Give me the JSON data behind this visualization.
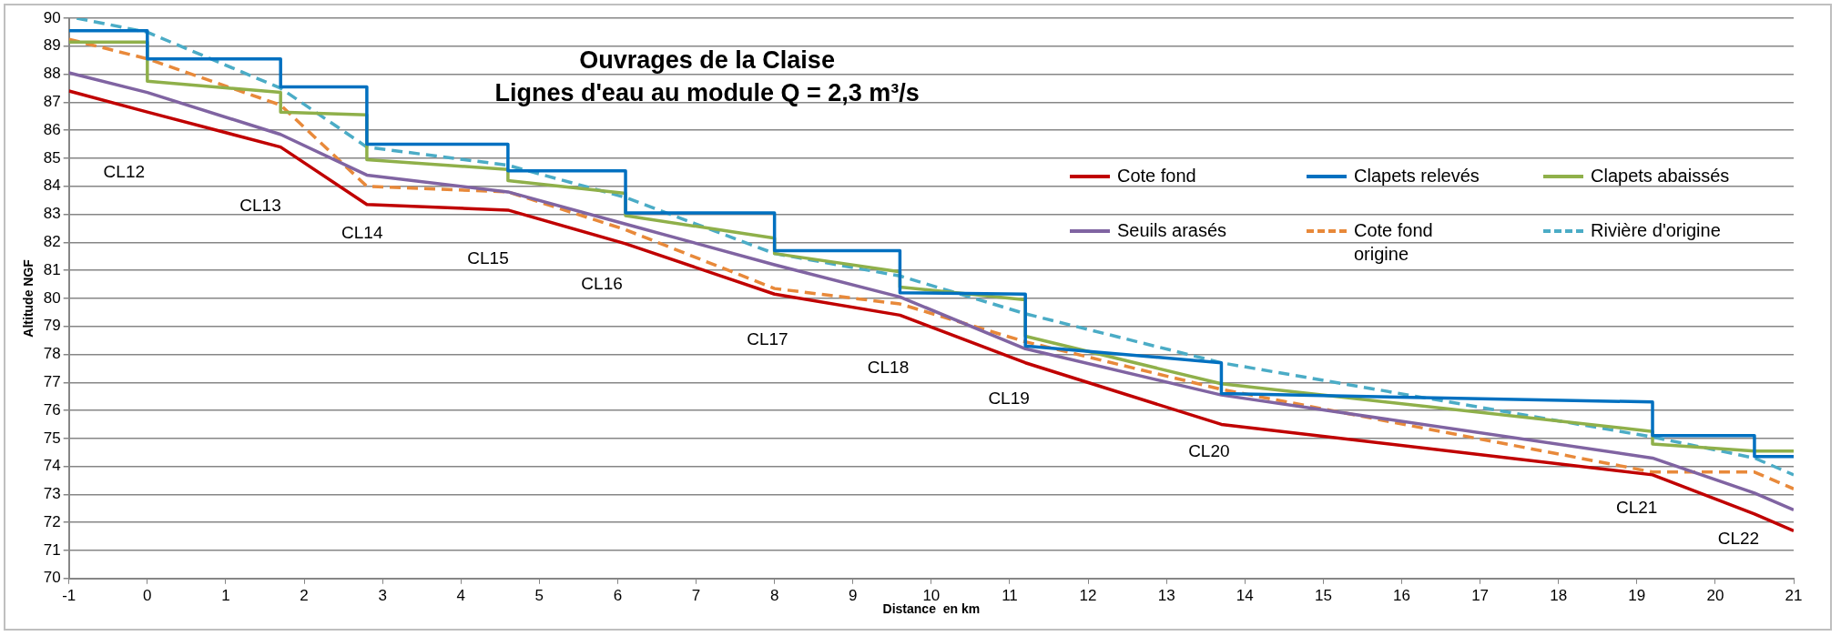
{
  "chart_data": {
    "type": "line",
    "title": "Ouvrages de la Claise",
    "subtitle": "Lignes d'eau au module Q = 2,3 m³/s",
    "xlabel": "Distance  en km",
    "ylabel": "Altitude NGF",
    "xlim": [
      -1,
      21
    ],
    "xticks": [
      -1,
      0,
      1,
      2,
      3,
      4,
      5,
      6,
      7,
      8,
      9,
      10,
      11,
      12,
      13,
      14,
      15,
      16,
      17,
      18,
      19,
      20,
      21
    ],
    "ylim": [
      70,
      90
    ],
    "yticks": [
      70,
      71,
      72,
      73,
      74,
      75,
      76,
      77,
      78,
      79,
      80,
      81,
      82,
      83,
      84,
      85,
      86,
      87,
      88,
      89,
      90
    ],
    "grid": "y",
    "legend": "right",
    "marker": "none",
    "series": [
      {
        "name": "Cote fond",
        "color": "#c00000",
        "line_style": "solid",
        "x": [
          -1,
          0,
          1.7,
          2.8,
          4.6,
          6.1,
          8,
          9.6,
          11.2,
          13.7,
          19.2,
          20.5,
          21
        ],
        "values": [
          87.4,
          86.65,
          85.4,
          83.35,
          83.15,
          81.95,
          80.15,
          79.4,
          77.7,
          75.5,
          73.7,
          72.3,
          71.7
        ]
      },
      {
        "name": "Clapets relevés",
        "color": "#0070c0",
        "line_style": "solid",
        "x": [
          -1,
          0,
          0,
          1.7,
          1.7,
          2.8,
          2.8,
          4.6,
          4.6,
          6.1,
          6.1,
          8,
          8,
          9.6,
          9.6,
          11.2,
          11.2,
          13.7,
          13.7,
          19.2,
          19.2,
          20.5,
          20.5,
          21
        ],
        "values": [
          89.55,
          89.55,
          88.55,
          88.55,
          87.55,
          87.55,
          85.5,
          85.5,
          84.55,
          84.55,
          83.05,
          83.05,
          81.7,
          81.7,
          80.2,
          80.15,
          78.3,
          77.7,
          76.6,
          76.3,
          75.1,
          75.1,
          74.35,
          74.35
        ]
      },
      {
        "name": "Clapets abaissés",
        "color": "#8fb04a",
        "line_style": "solid",
        "x": [
          -1,
          0,
          0,
          1.7,
          1.7,
          2.8,
          2.8,
          4.6,
          4.6,
          6.1,
          6.1,
          8,
          8,
          9.6,
          9.6,
          11.2,
          11.2,
          13.7,
          19.2,
          19.2,
          20.5,
          21
        ],
        "values": [
          89.15,
          89.15,
          87.75,
          87.35,
          86.65,
          86.55,
          84.95,
          84.6,
          84.2,
          83.75,
          82.95,
          82.15,
          81.6,
          80.95,
          80.4,
          79.95,
          78.65,
          76.95,
          75.25,
          74.8,
          74.55,
          74.55
        ]
      },
      {
        "name": "Seuils arasés",
        "color": "#8064a2",
        "line_style": "solid",
        "x": [
          -1,
          0,
          1.7,
          2.8,
          4.6,
          6.1,
          8,
          9.6,
          11.2,
          13.7,
          19.2,
          20.5,
          21
        ],
        "values": [
          88.05,
          87.35,
          85.85,
          84.4,
          83.8,
          82.65,
          81.2,
          80.05,
          78.2,
          76.55,
          74.3,
          73.05,
          72.45
        ]
      },
      {
        "name": "Cote fond origine",
        "color": "#e8893a",
        "line_style": "dashed",
        "x": [
          -1,
          0,
          1.7,
          2.8,
          4.6,
          6.1,
          8,
          9.6,
          11.2,
          13.7,
          19.2,
          20.5,
          21
        ],
        "values": [
          89.25,
          88.55,
          86.9,
          84.0,
          83.8,
          82.45,
          80.35,
          79.8,
          78.45,
          76.75,
          73.8,
          73.8,
          73.2
        ]
      },
      {
        "name": "Rivière d'origine",
        "color": "#4bacc6",
        "line_style": "dashed",
        "x": [
          -0.9,
          0,
          1.7,
          2.8,
          4.6,
          6.1,
          8,
          9.6,
          11.2,
          13.7,
          19.2,
          20.5,
          21
        ],
        "values": [
          90,
          89.5,
          87.5,
          85.4,
          84.75,
          83.6,
          81.6,
          80.8,
          79.45,
          77.7,
          75.05,
          74.3,
          73.7
        ]
      }
    ],
    "annotations": [
      "CL12",
      "CL13",
      "CL14",
      "CL15",
      "CL16",
      "CL17",
      "CL18",
      "CL19",
      "CL20",
      "CL21",
      "CL22"
    ]
  }
}
